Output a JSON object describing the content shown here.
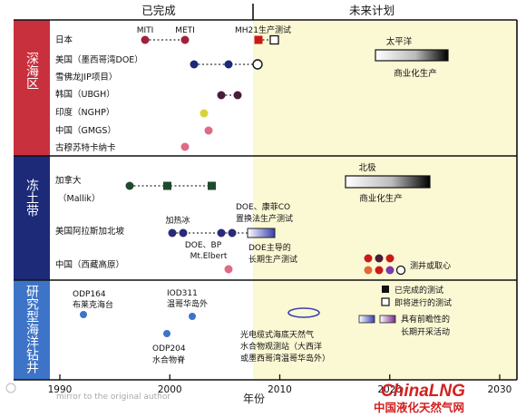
{
  "header": {
    "completed": "已完成",
    "future": "未来计划"
  },
  "sections": [
    {
      "name": "深海区",
      "color": "#c9303d"
    },
    {
      "name": "冻土带",
      "color": "#1d2a78"
    },
    {
      "name": "研究型海洋钻井",
      "color": "#3d74c8"
    }
  ],
  "deep_sea_rows": [
    {
      "label": "日本"
    },
    {
      "label": "美国（墨西哥湾DOE）"
    },
    {
      "label": "雪佛龙JIP项目）"
    },
    {
      "label": "韩国（UBGH）"
    },
    {
      "label": "印度（NGHP）"
    },
    {
      "label": "中国（GMGS）"
    },
    {
      "label": "古穆苏特卡纳卡"
    }
  ],
  "deep_sea_annotations": {
    "miti_1": "MITI",
    "miti_2": "METI",
    "mh21": "MH21生产测试"
  },
  "permafrost_rows": [
    {
      "label": "加拿大"
    },
    {
      "label": "（Mallik）"
    },
    {
      "label": "美国阿拉斯加北坡"
    },
    {
      "label": "中国（西藏高原）"
    }
  ],
  "permafrost_annotations": {
    "heating": "加热冰",
    "doe_bp": "DOE、BP",
    "mt_elbert": "Mt.Elbert",
    "doe_conoco_1": "DOE、康菲CO",
    "doe_conoco_2": "置换法生产测试",
    "doe_long_1": "DOE主导的",
    "doe_long_2": "长期生产测试",
    "test_or_core": "测井或取心"
  },
  "commercial": {
    "pacific_label": "太平洋",
    "pacific_text": "商业化生产",
    "arctic_label": "北极",
    "arctic_text": "商业化生产"
  },
  "research_annotations": {
    "odp164_1": "ODP164",
    "odp164_2": "布莱克海台",
    "iod311_1": "IOD311",
    "iod311_2": "温哥华岛外",
    "odp204_1": "ODP204",
    "odp204_2": "水合物脊",
    "cable_1": "光电缆式海底天然气",
    "cable_2": "水合物观测站（大西洋",
    "cable_3": "或墨西哥湾温哥华岛外）"
  },
  "legend": [
    {
      "label": "已完成的测试"
    },
    {
      "label": "即将进行的测试"
    },
    {
      "label": "具有前瞻性的"
    },
    {
      "label": "长期开采活动"
    }
  ],
  "x_axis": {
    "title": "年份",
    "range": [
      1990,
      2030
    ],
    "ticks": [
      {
        "value": 1990,
        "label": "1990"
      },
      {
        "value": 2000,
        "label": "2000"
      },
      {
        "value": 2010,
        "label": "2010"
      },
      {
        "value": 2020,
        "label": "2020"
      },
      {
        "value": 2030,
        "label": "2030"
      }
    ]
  },
  "colors": {
    "future_bg": "#fbf8d4",
    "deep_sea": "#c9303d",
    "permafrost": "#1d2a78",
    "research": "#3d74c8",
    "logo_red": "#d42020"
  },
  "watermark": {
    "source_text": "mirror to the original author"
  },
  "logo": {
    "brand": "ChinaLNG",
    "caption": "中国液化天然气网"
  }
}
